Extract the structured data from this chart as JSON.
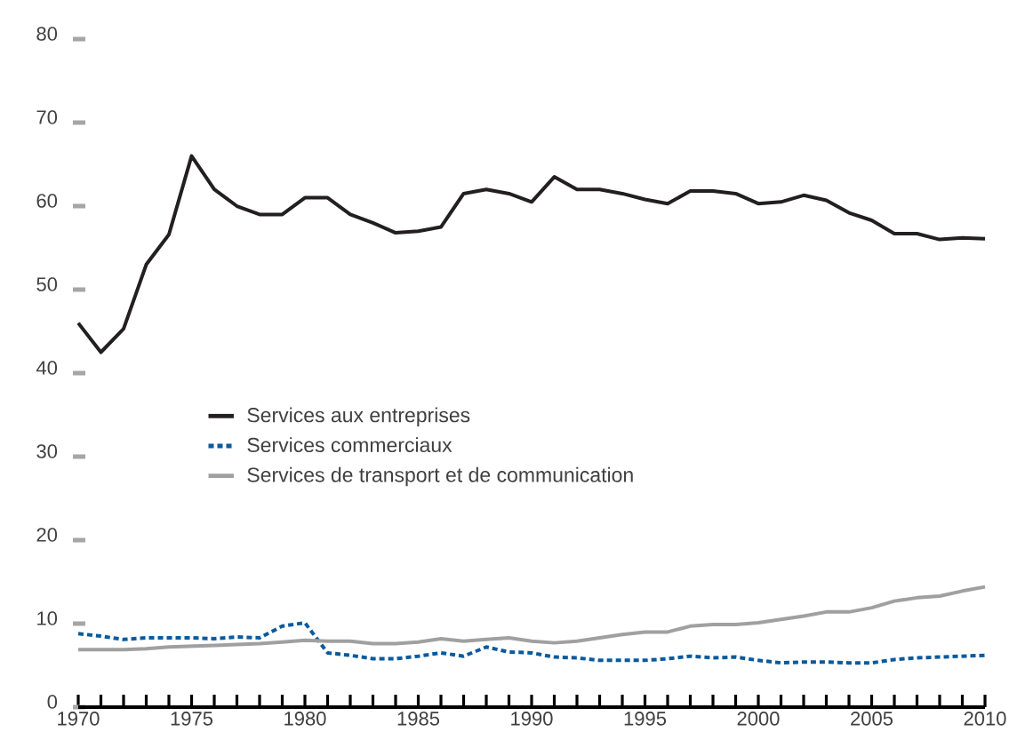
{
  "chart_data": {
    "type": "line",
    "x": [
      1970,
      1971,
      1972,
      1973,
      1974,
      1975,
      1976,
      1977,
      1978,
      1979,
      1980,
      1981,
      1982,
      1983,
      1984,
      1985,
      1986,
      1987,
      1988,
      1989,
      1990,
      1991,
      1992,
      1993,
      1994,
      1995,
      1996,
      1997,
      1998,
      1999,
      2000,
      2001,
      2002,
      2003,
      2004,
      2005,
      2006,
      2007,
      2008,
      2009,
      2010
    ],
    "series": [
      {
        "name": "Services aux entreprises",
        "color": "#231f20",
        "line_style": "solid",
        "values": [
          46,
          42.5,
          45.3,
          53,
          56.6,
          66,
          62,
          60,
          59,
          59,
          61,
          61,
          59,
          58,
          56.8,
          57,
          57.5,
          61.5,
          62,
          61.5,
          60.5,
          63.5,
          62,
          62,
          61.5,
          60.8,
          60.3,
          61.8,
          61.8,
          61.5,
          60.3,
          60.5,
          61.3,
          60.7,
          59.2,
          58.3,
          56.7,
          56.7,
          56,
          56.2,
          56.1
        ]
      },
      {
        "name": "Services commerciaux",
        "color": "#0a5a9c",
        "line_style": "dashed",
        "values": [
          8.8,
          8.5,
          8.1,
          8.3,
          8.3,
          8.3,
          8.2,
          8.4,
          8.3,
          9.7,
          10.1,
          6.5,
          6.2,
          5.8,
          5.8,
          6.1,
          6.5,
          6.1,
          7.2,
          6.6,
          6.5,
          6.0,
          5.9,
          5.6,
          5.6,
          5.6,
          5.8,
          6.1,
          5.9,
          6.0,
          5.6,
          5.3,
          5.4,
          5.4,
          5.3,
          5.3,
          5.7,
          5.9,
          6.0,
          6.1,
          6.2
        ]
      },
      {
        "name": "Services de transport et de communication",
        "color": "#a0a0a0",
        "line_style": "solid",
        "values": [
          6.9,
          6.9,
          6.9,
          7.0,
          7.2,
          7.3,
          7.4,
          7.5,
          7.6,
          7.8,
          8.0,
          7.9,
          7.9,
          7.6,
          7.6,
          7.8,
          8.2,
          7.9,
          8.1,
          8.3,
          7.9,
          7.7,
          7.9,
          8.3,
          8.7,
          9.0,
          9.0,
          9.7,
          9.9,
          9.9,
          10.1,
          10.5,
          10.9,
          11.4,
          11.4,
          11.9,
          12.7,
          13.1,
          13.3,
          13.9,
          14.4
        ]
      }
    ],
    "xlim": [
      1970,
      2010
    ],
    "xticks": [
      1970,
      {
        "value": 1971,
        "label": null
      },
      {
        "value": 1972,
        "label": null
      },
      {
        "value": 1973,
        "label": null
      },
      {
        "value": 1974,
        "label": null
      },
      1975,
      {
        "value": 1976,
        "label": null
      },
      {
        "value": 1977,
        "label": null
      },
      {
        "value": 1978,
        "label": null
      },
      {
        "value": 1979,
        "label": null
      },
      1980,
      {
        "value": 1981,
        "label": null
      },
      {
        "value": 1982,
        "label": null
      },
      {
        "value": 1983,
        "label": null
      },
      {
        "value": 1984,
        "label": null
      },
      1985,
      {
        "value": 1986,
        "label": null
      },
      {
        "value": 1987,
        "label": null
      },
      {
        "value": 1988,
        "label": null
      },
      {
        "value": 1989,
        "label": null
      },
      1990,
      {
        "value": 1991,
        "label": null
      },
      {
        "value": 1992,
        "label": null
      },
      {
        "value": 1993,
        "label": null
      },
      {
        "value": 1994,
        "label": null
      },
      1995,
      {
        "value": 1996,
        "label": null
      },
      {
        "value": 1997,
        "label": null
      },
      {
        "value": 1998,
        "label": null
      },
      {
        "value": 1999,
        "label": null
      },
      2000,
      {
        "value": 2001,
        "label": null
      },
      {
        "value": 2002,
        "label": null
      },
      {
        "value": 2003,
        "label": null
      },
      {
        "value": 2004,
        "label": null
      },
      2005,
      {
        "value": 2006,
        "label": null
      },
      {
        "value": 2007,
        "label": null
      },
      {
        "value": 2008,
        "label": null
      },
      {
        "value": 2009,
        "label": null
      },
      2010
    ],
    "ylim": [
      0,
      80
    ],
    "yticks": [
      0,
      10,
      20,
      30,
      40,
      50,
      60,
      70,
      80
    ],
    "grid": false,
    "legend": "left",
    "marker": "none"
  }
}
